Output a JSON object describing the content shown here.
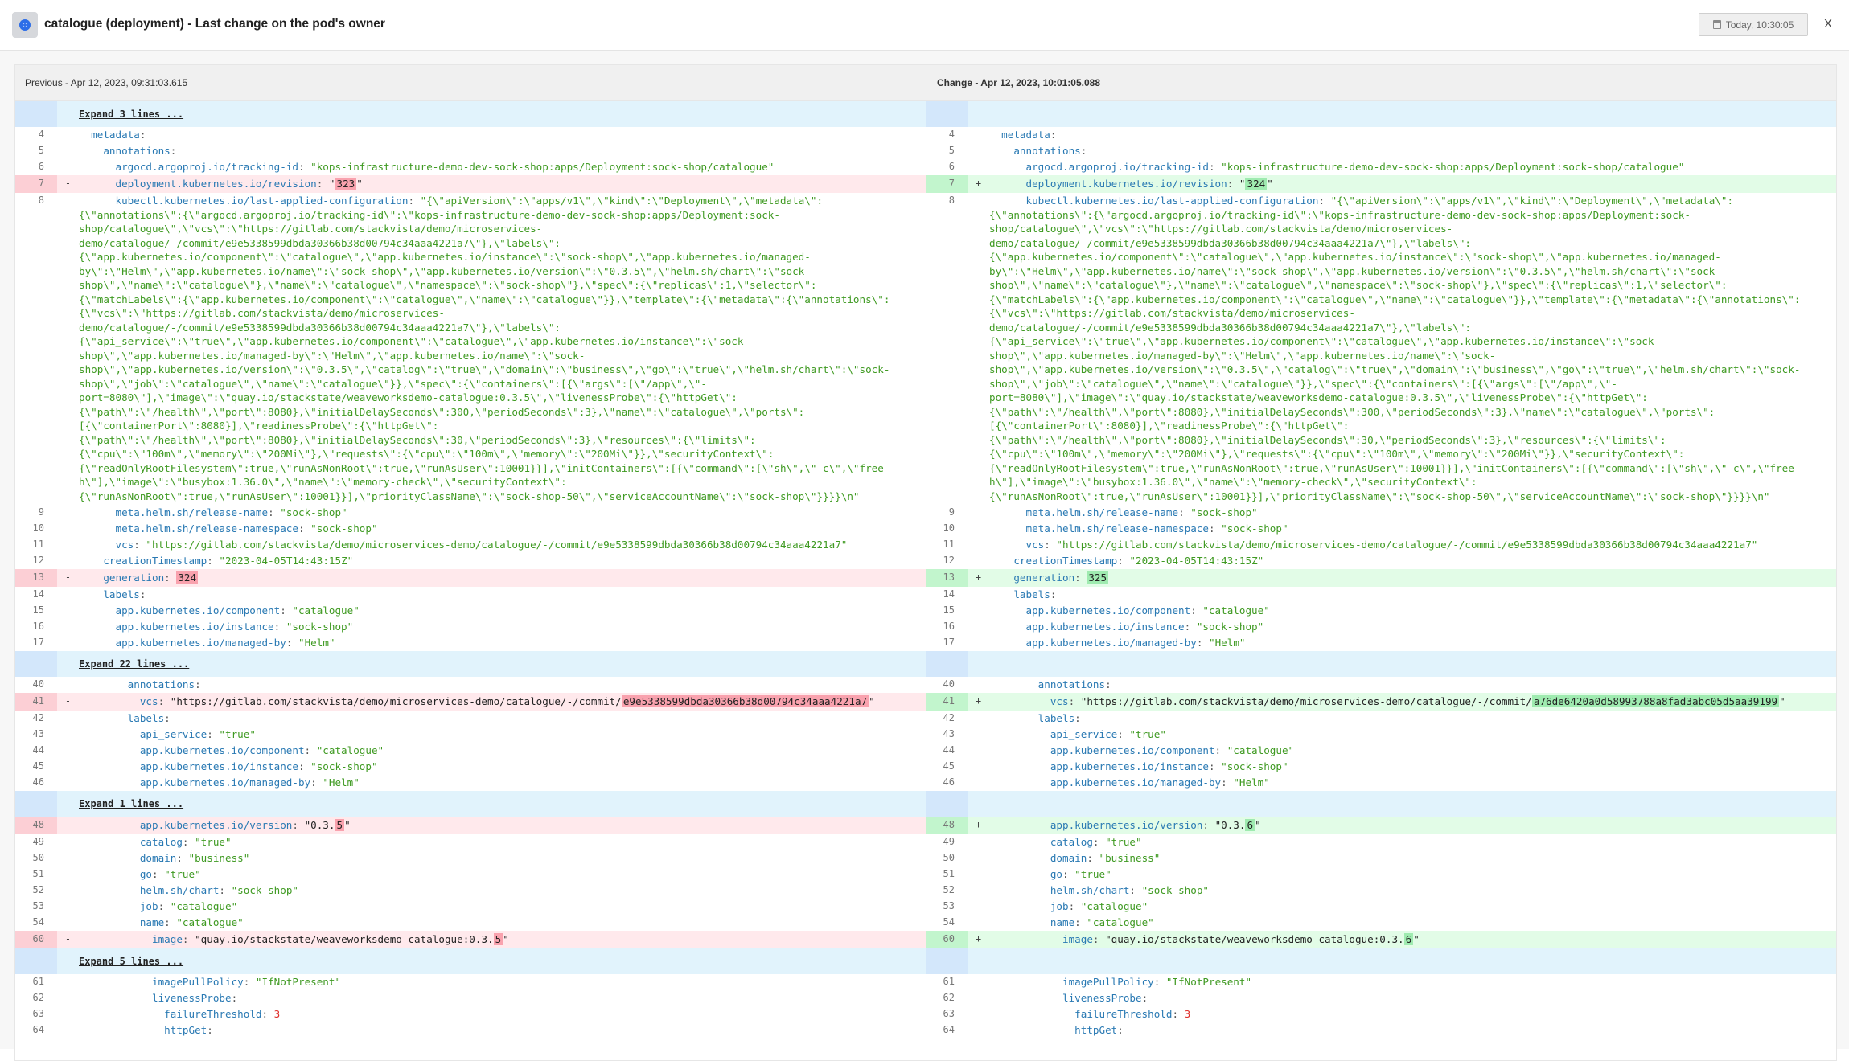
{
  "header": {
    "title": "catalogue (deployment) - Last change on the pod's owner",
    "date_button": "Today, 10:30:05",
    "close_label": "X"
  },
  "columns": {
    "previous": "Previous - Apr 12, 2023, 09:31:03.615",
    "change": "Change - Apr 12, 2023, 10:01:05.088"
  },
  "signs": {
    "removed": "-",
    "added": "+"
  },
  "colors": {
    "removed_bg": "#ffe9ec",
    "added_bg": "#e2fce7",
    "removed_highlight": "#f9a2ae",
    "added_highlight": "#9febb0",
    "expand_bg": "#e1f3fc",
    "key": "#2979b3",
    "string": "#3f9a22",
    "number": "#e0302c"
  },
  "rows": [
    {
      "expand": "Expand 3 lines ..."
    },
    {
      "n": 4,
      "t": [
        [
          "p",
          "  "
        ],
        [
          "k",
          "metadata"
        ],
        [
          "p",
          ":"
        ]
      ]
    },
    {
      "n": 5,
      "t": [
        [
          "p",
          "    "
        ],
        [
          "k",
          "annotations"
        ],
        [
          "p",
          ":"
        ]
      ]
    },
    {
      "n": 6,
      "t": [
        [
          "p",
          "      "
        ],
        [
          "k",
          "argocd.argoproj.io/tracking-id"
        ],
        [
          "p",
          ": "
        ],
        [
          "s",
          "\"kops-infrastructure-demo-dev-sock-shop:apps/Deployment:sock-shop/catalogue\""
        ]
      ]
    },
    {
      "n": 7,
      "left": [
        [
          "p",
          "      "
        ],
        [
          "k",
          "deployment.kubernetes.io/revision"
        ],
        [
          "p",
          ": "
        ],
        [
          "x",
          "\""
        ],
        [
          "h",
          "323"
        ],
        [
          "x",
          "\""
        ]
      ],
      "right": [
        [
          "p",
          "      "
        ],
        [
          "k",
          "deployment.kubernetes.io/revision"
        ],
        [
          "p",
          ": "
        ],
        [
          "x",
          "\""
        ],
        [
          "h",
          "324"
        ],
        [
          "x",
          "\""
        ]
      ]
    },
    {
      "n": 8,
      "t": [
        [
          "p",
          "      "
        ],
        [
          "k",
          "kubectl.kubernetes.io/last-applied-configuration"
        ],
        [
          "p",
          ": "
        ],
        [
          "s",
          "\"{\\\"apiVersion\\\":\\\"apps/v1\\\",\\\"kind\\\":\\\"Deployment\\\",\\\"metadata\\\":{\\\"annotations\\\":{\\\"argocd.argoproj.io/tracking-id\\\":\\\"kops-infrastructure-demo-dev-sock-shop:apps/Deployment:sock-shop/catalogue\\\",\\\"vcs\\\":\\\"https://gitlab.com/stackvista/demo/microservices-demo/catalogue/-/commit/e9e5338599dbda30366b38d00794c34aaa4221a7\\\"},\\\"labels\\\":{\\\"app.kubernetes.io/component\\\":\\\"catalogue\\\",\\\"app.kubernetes.io/instance\\\":\\\"sock-shop\\\",\\\"app.kubernetes.io/managed-by\\\":\\\"Helm\\\",\\\"app.kubernetes.io/name\\\":\\\"sock-shop\\\",\\\"app.kubernetes.io/version\\\":\\\"0.3.5\\\",\\\"helm.sh/chart\\\":\\\"sock-shop\\\",\\\"name\\\":\\\"catalogue\\\"},\\\"name\\\":\\\"catalogue\\\",\\\"namespace\\\":\\\"sock-shop\\\"},\\\"spec\\\":{\\\"replicas\\\":1,\\\"selector\\\":{\\\"matchLabels\\\":{\\\"app.kubernetes.io/component\\\":\\\"catalogue\\\",\\\"name\\\":\\\"catalogue\\\"}},\\\"template\\\":{\\\"metadata\\\":{\\\"annotations\\\":{\\\"vcs\\\":\\\"https://gitlab.com/stackvista/demo/microservices-demo/catalogue/-/commit/e9e5338599dbda30366b38d00794c34aaa4221a7\\\"},\\\"labels\\\":{\\\"api_service\\\":\\\"true\\\",\\\"app.kubernetes.io/component\\\":\\\"catalogue\\\",\\\"app.kubernetes.io/instance\\\":\\\"sock-shop\\\",\\\"app.kubernetes.io/managed-by\\\":\\\"Helm\\\",\\\"app.kubernetes.io/name\\\":\\\"sock-shop\\\",\\\"app.kubernetes.io/version\\\":\\\"0.3.5\\\",\\\"catalog\\\":\\\"true\\\",\\\"domain\\\":\\\"business\\\",\\\"go\\\":\\\"true\\\",\\\"helm.sh/chart\\\":\\\"sock-shop\\\",\\\"job\\\":\\\"catalogue\\\",\\\"name\\\":\\\"catalogue\\\"}},\\\"spec\\\":{\\\"containers\\\":[{\\\"args\\\":[\\\"/app\\\",\\\"-port=8080\\\"],\\\"image\\\":\\\"quay.io/stackstate/weaveworksdemo-catalogue:0.3.5\\\",\\\"livenessProbe\\\":{\\\"httpGet\\\":{\\\"path\\\":\\\"/health\\\",\\\"port\\\":8080},\\\"initialDelaySeconds\\\":300,\\\"periodSeconds\\\":3},\\\"name\\\":\\\"catalogue\\\",\\\"ports\\\":[{\\\"containerPort\\\":8080}],\\\"readinessProbe\\\":{\\\"httpGet\\\":{\\\"path\\\":\\\"/health\\\",\\\"port\\\":8080},\\\"initialDelaySeconds\\\":30,\\\"periodSeconds\\\":3},\\\"resources\\\":{\\\"limits\\\":{\\\"cpu\\\":\\\"100m\\\",\\\"memory\\\":\\\"200Mi\\\"},\\\"requests\\\":{\\\"cpu\\\":\\\"100m\\\",\\\"memory\\\":\\\"200Mi\\\"}},\\\"securityContext\\\":{\\\"readOnlyRootFilesystem\\\":true,\\\"runAsNonRoot\\\":true,\\\"runAsUser\\\":10001}}],\\\"initContainers\\\":[{\\\"command\\\":[\\\"sh\\\",\\\"-c\\\",\\\"free -h\\\"],\\\"image\\\":\\\"busybox:1.36.0\\\",\\\"name\\\":\\\"memory-check\\\",\\\"securityContext\\\":{\\\"runAsNonRoot\\\":true,\\\"runAsUser\\\":10001}}],\\\"priorityClassName\\\":\\\"sock-shop-50\\\",\\\"serviceAccountName\\\":\\\"sock-shop\\\"}}}}\\n\""
        ]
      ]
    },
    {
      "n": 9,
      "t": [
        [
          "p",
          "      "
        ],
        [
          "k",
          "meta.helm.sh/release-name"
        ],
        [
          "p",
          ": "
        ],
        [
          "s",
          "\"sock-shop\""
        ]
      ]
    },
    {
      "n": 10,
      "t": [
        [
          "p",
          "      "
        ],
        [
          "k",
          "meta.helm.sh/release-namespace"
        ],
        [
          "p",
          ": "
        ],
        [
          "s",
          "\"sock-shop\""
        ]
      ]
    },
    {
      "n": 11,
      "t": [
        [
          "p",
          "      "
        ],
        [
          "k",
          "vcs"
        ],
        [
          "p",
          ": "
        ],
        [
          "s",
          "\"https://gitlab.com/stackvista/demo/microservices-demo/catalogue/-/commit/e9e5338599dbda30366b38d00794c34aaa4221a7\""
        ]
      ]
    },
    {
      "n": 12,
      "t": [
        [
          "p",
          "    "
        ],
        [
          "k",
          "creationTimestamp"
        ],
        [
          "p",
          ": "
        ],
        [
          "s",
          "\"2023-04-05T14:43:15Z\""
        ]
      ]
    },
    {
      "n": 13,
      "left": [
        [
          "p",
          "    "
        ],
        [
          "k",
          "generation"
        ],
        [
          "p",
          ": "
        ],
        [
          "h",
          "324"
        ]
      ],
      "right": [
        [
          "p",
          "    "
        ],
        [
          "k",
          "generation"
        ],
        [
          "p",
          ": "
        ],
        [
          "h",
          "325"
        ]
      ]
    },
    {
      "n": 14,
      "t": [
        [
          "p",
          "    "
        ],
        [
          "k",
          "labels"
        ],
        [
          "p",
          ":"
        ]
      ]
    },
    {
      "n": 15,
      "t": [
        [
          "p",
          "      "
        ],
        [
          "k",
          "app.kubernetes.io/component"
        ],
        [
          "p",
          ": "
        ],
        [
          "s",
          "\"catalogue\""
        ]
      ]
    },
    {
      "n": 16,
      "t": [
        [
          "p",
          "      "
        ],
        [
          "k",
          "app.kubernetes.io/instance"
        ],
        [
          "p",
          ": "
        ],
        [
          "s",
          "\"sock-shop\""
        ]
      ]
    },
    {
      "n": 17,
      "t": [
        [
          "p",
          "      "
        ],
        [
          "k",
          "app.kubernetes.io/managed-by"
        ],
        [
          "p",
          ": "
        ],
        [
          "s",
          "\"Helm\""
        ]
      ]
    },
    {
      "expand": "Expand 22 lines ..."
    },
    {
      "n": 40,
      "t": [
        [
          "p",
          "        "
        ],
        [
          "k",
          "annotations"
        ],
        [
          "p",
          ":"
        ]
      ]
    },
    {
      "n": 41,
      "left": [
        [
          "p",
          "          "
        ],
        [
          "k",
          "vcs"
        ],
        [
          "p",
          ": "
        ],
        [
          "x",
          "\"https://gitlab.com/stackvista/demo/microservices-demo/catalogue/-/commit/"
        ],
        [
          "h",
          "e9e5338599dbda30366b38d00794c34aaa4221a7"
        ],
        [
          "x",
          "\""
        ]
      ],
      "right": [
        [
          "p",
          "          "
        ],
        [
          "k",
          "vcs"
        ],
        [
          "p",
          ": "
        ],
        [
          "x",
          "\"https://gitlab.com/stackvista/demo/microservices-demo/catalogue/-/commit/"
        ],
        [
          "h",
          "a76de6420a0d58993788a8fad3abc05d5aa39199"
        ],
        [
          "x",
          "\""
        ]
      ]
    },
    {
      "n": 42,
      "t": [
        [
          "p",
          "        "
        ],
        [
          "k",
          "labels"
        ],
        [
          "p",
          ":"
        ]
      ]
    },
    {
      "n": 43,
      "t": [
        [
          "p",
          "          "
        ],
        [
          "k",
          "api_service"
        ],
        [
          "p",
          ": "
        ],
        [
          "s",
          "\"true\""
        ]
      ]
    },
    {
      "n": 44,
      "t": [
        [
          "p",
          "          "
        ],
        [
          "k",
          "app.kubernetes.io/component"
        ],
        [
          "p",
          ": "
        ],
        [
          "s",
          "\"catalogue\""
        ]
      ]
    },
    {
      "n": 45,
      "t": [
        [
          "p",
          "          "
        ],
        [
          "k",
          "app.kubernetes.io/instance"
        ],
        [
          "p",
          ": "
        ],
        [
          "s",
          "\"sock-shop\""
        ]
      ]
    },
    {
      "n": 46,
      "t": [
        [
          "p",
          "          "
        ],
        [
          "k",
          "app.kubernetes.io/managed-by"
        ],
        [
          "p",
          ": "
        ],
        [
          "s",
          "\"Helm\""
        ]
      ]
    },
    {
      "expand": "Expand 1 lines ..."
    },
    {
      "n": 48,
      "left": [
        [
          "p",
          "          "
        ],
        [
          "k",
          "app.kubernetes.io/version"
        ],
        [
          "p",
          ": "
        ],
        [
          "x",
          "\"0.3."
        ],
        [
          "h",
          "5"
        ],
        [
          "x",
          "\""
        ]
      ],
      "right": [
        [
          "p",
          "          "
        ],
        [
          "k",
          "app.kubernetes.io/version"
        ],
        [
          "p",
          ": "
        ],
        [
          "x",
          "\"0.3."
        ],
        [
          "h",
          "6"
        ],
        [
          "x",
          "\""
        ]
      ]
    },
    {
      "n": 49,
      "t": [
        [
          "p",
          "          "
        ],
        [
          "k",
          "catalog"
        ],
        [
          "p",
          ": "
        ],
        [
          "s",
          "\"true\""
        ]
      ]
    },
    {
      "n": 50,
      "t": [
        [
          "p",
          "          "
        ],
        [
          "k",
          "domain"
        ],
        [
          "p",
          ": "
        ],
        [
          "s",
          "\"business\""
        ]
      ]
    },
    {
      "n": 51,
      "t": [
        [
          "p",
          "          "
        ],
        [
          "k",
          "go"
        ],
        [
          "p",
          ": "
        ],
        [
          "s",
          "\"true\""
        ]
      ]
    },
    {
      "n": 52,
      "t": [
        [
          "p",
          "          "
        ],
        [
          "k",
          "helm.sh/chart"
        ],
        [
          "p",
          ": "
        ],
        [
          "s",
          "\"sock-shop\""
        ]
      ]
    },
    {
      "n": 53,
      "t": [
        [
          "p",
          "          "
        ],
        [
          "k",
          "job"
        ],
        [
          "p",
          ": "
        ],
        [
          "s",
          "\"catalogue\""
        ]
      ]
    },
    {
      "n": 54,
      "t": [
        [
          "p",
          "          "
        ],
        [
          "k",
          "name"
        ],
        [
          "p",
          ": "
        ],
        [
          "s",
          "\"catalogue\""
        ]
      ]
    },
    {
      "n": 60,
      "left": [
        [
          "p",
          "            "
        ],
        [
          "k",
          "image"
        ],
        [
          "p",
          ": "
        ],
        [
          "x",
          "\"quay.io/stackstate/weaveworksdemo-catalogue:0.3."
        ],
        [
          "h",
          "5"
        ],
        [
          "x",
          "\""
        ]
      ],
      "right": [
        [
          "p",
          "            "
        ],
        [
          "k",
          "image"
        ],
        [
          "p",
          ": "
        ],
        [
          "x",
          "\"quay.io/stackstate/weaveworksdemo-catalogue:0.3."
        ],
        [
          "h",
          "6"
        ],
        [
          "x",
          "\""
        ]
      ]
    },
    {
      "expand": "Expand 5 lines ..."
    },
    {
      "n": 61,
      "t": [
        [
          "p",
          "            "
        ],
        [
          "k",
          "imagePullPolicy"
        ],
        [
          "p",
          ": "
        ],
        [
          "s",
          "\"IfNotPresent\""
        ]
      ]
    },
    {
      "n": 62,
      "t": [
        [
          "p",
          "            "
        ],
        [
          "k",
          "livenessProbe"
        ],
        [
          "p",
          ":"
        ]
      ]
    },
    {
      "n": 63,
      "t": [
        [
          "p",
          "              "
        ],
        [
          "k",
          "failureThreshold"
        ],
        [
          "p",
          ": "
        ],
        [
          "n",
          "3"
        ]
      ]
    },
    {
      "n": 64,
      "t": [
        [
          "p",
          "              "
        ],
        [
          "k",
          "httpGet"
        ],
        [
          "p",
          ":"
        ]
      ]
    }
  ]
}
